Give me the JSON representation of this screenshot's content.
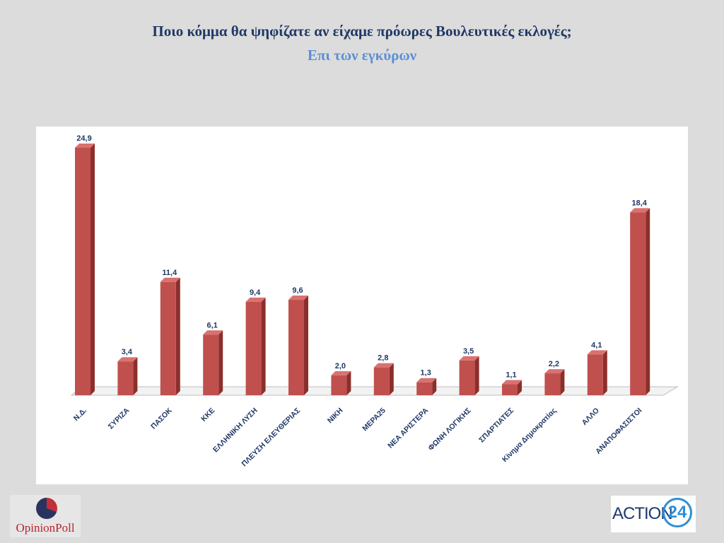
{
  "header": {
    "title": "Ποιο κόμμα θα ψηφίζατε αν είχαμε πρόωρες Βουλευτικές εκλογές;",
    "subtitle": "Επι των εγκύρων"
  },
  "logos": {
    "opinionpoll": "OpinionPoll",
    "action": "ACTION",
    "action_number": "24"
  },
  "colors": {
    "bar_front": "#c0504d",
    "bar_side": "#8c2f2c",
    "bar_top": "#d9726f",
    "label": "#1f3866"
  },
  "chart_data": {
    "type": "bar",
    "title": "Ποιο κόμμα θα ψηφίζατε αν είχαμε πρόωρες Βουλευτικές εκλογές;",
    "subtitle": "Επι των εγκύρων",
    "categories": [
      "Ν.Δ.",
      "ΣΥΡΙΖΑ",
      "ΠΑΣΟΚ",
      "ΚΚΕ",
      "ΕΛΛΗΝΙΚΗ ΛΥΣΗ",
      "ΠΛΕΥΣΗ ΕΛΕΥΘΕΡΙΑΣ",
      "ΝΙΚΗ",
      "ΜΕΡΑ25",
      "ΝΕΑ ΑΡΙΣΤΕΡΑ",
      "ΦΩΝΗ ΛΟΓΙΚΗΣ",
      "ΣΠΑΡΤΙΑΤΕΣ",
      "Κίνημα Δημοκρατίας",
      "ΑΛΛΟ",
      "ΑΝΑΠΟΦΑΣΙΣΤΟΙ"
    ],
    "values": [
      24.9,
      3.4,
      11.4,
      6.1,
      9.4,
      9.6,
      2.0,
      2.8,
      1.3,
      3.5,
      1.1,
      2.2,
      4.1,
      18.4
    ],
    "value_labels": [
      "24,9",
      "3,4",
      "11,4",
      "6,1",
      "9,4",
      "9,6",
      "2,0",
      "2,8",
      "1,3",
      "3,5",
      "1,1",
      "2,2",
      "4,1",
      "18,4"
    ],
    "ylim": [
      0,
      24.9
    ],
    "grid": false,
    "legend": "none"
  }
}
